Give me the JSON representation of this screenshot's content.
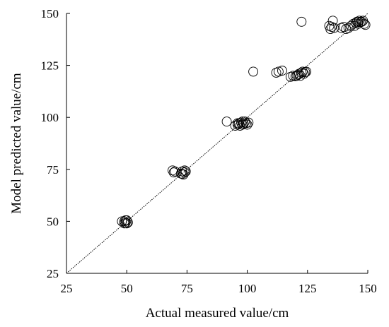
{
  "chart_data": {
    "type": "scatter",
    "title": "",
    "xlabel": "Actual measured value/cm",
    "ylabel": "Model predicted value/cm",
    "xlim": [
      25,
      150
    ],
    "ylim": [
      25,
      150
    ],
    "xticks": [
      "25",
      "50",
      "75",
      "100",
      "125",
      "150"
    ],
    "yticks": [
      "25",
      "50",
      "75",
      "100",
      "125",
      "150"
    ],
    "grid": false,
    "reference_line": {
      "style": "dotted",
      "from": [
        25,
        25
      ],
      "to": [
        150,
        150
      ]
    },
    "marker": "open-circle",
    "series": [
      {
        "points": [
          [
            48,
            50
          ],
          [
            49,
            49
          ],
          [
            49.5,
            50.5
          ],
          [
            50,
            49
          ],
          [
            50.5,
            49.5
          ],
          [
            49,
            50
          ],
          [
            50,
            50.5
          ],
          [
            49.5,
            49.2
          ],
          [
            69,
            74.5
          ],
          [
            69.5,
            73.5
          ],
          [
            70,
            74
          ],
          [
            72.5,
            73
          ],
          [
            73,
            74
          ],
          [
            73.5,
            72.5
          ],
          [
            74,
            73.5
          ],
          [
            74.5,
            74
          ],
          [
            73,
            72.8
          ],
          [
            74,
            74.5
          ],
          [
            91.5,
            98
          ],
          [
            95,
            96
          ],
          [
            96,
            96.5
          ],
          [
            96.5,
            97
          ],
          [
            97,
            96
          ],
          [
            97.5,
            97.5
          ],
          [
            98,
            96.5
          ],
          [
            98.5,
            97
          ],
          [
            99,
            98
          ],
          [
            99.5,
            97.2
          ],
          [
            100,
            96.5
          ],
          [
            100.5,
            97.5
          ],
          [
            96,
            97.2
          ],
          [
            98,
            98
          ],
          [
            102.5,
            122
          ],
          [
            112,
            121.5
          ],
          [
            113,
            122
          ],
          [
            114.5,
            122.5
          ],
          [
            118,
            119.5
          ],
          [
            119,
            120
          ],
          [
            120,
            119.8
          ],
          [
            121,
            120.5
          ],
          [
            121.5,
            121
          ],
          [
            122,
            120
          ],
          [
            122.5,
            121.5
          ],
          [
            123,
            122
          ],
          [
            123.5,
            121
          ],
          [
            124,
            121.8
          ],
          [
            124.5,
            122
          ],
          [
            120.5,
            120
          ],
          [
            122.5,
            146
          ],
          [
            134,
            144
          ],
          [
            134.5,
            142.5
          ],
          [
            135,
            143.5
          ],
          [
            135.5,
            146.5
          ],
          [
            136,
            143
          ],
          [
            139,
            143
          ],
          [
            140,
            143.5
          ],
          [
            141,
            142.5
          ],
          [
            142,
            143
          ],
          [
            143,
            144
          ],
          [
            144,
            145
          ],
          [
            144.5,
            144
          ],
          [
            145,
            145.5
          ],
          [
            145.5,
            146
          ],
          [
            146,
            145
          ],
          [
            146.5,
            146.5
          ],
          [
            147,
            145.8
          ],
          [
            147.5,
            146
          ],
          [
            148,
            146.5
          ],
          [
            148.5,
            145
          ],
          [
            149,
            144.5
          ],
          [
            146,
            146
          ]
        ]
      }
    ]
  }
}
